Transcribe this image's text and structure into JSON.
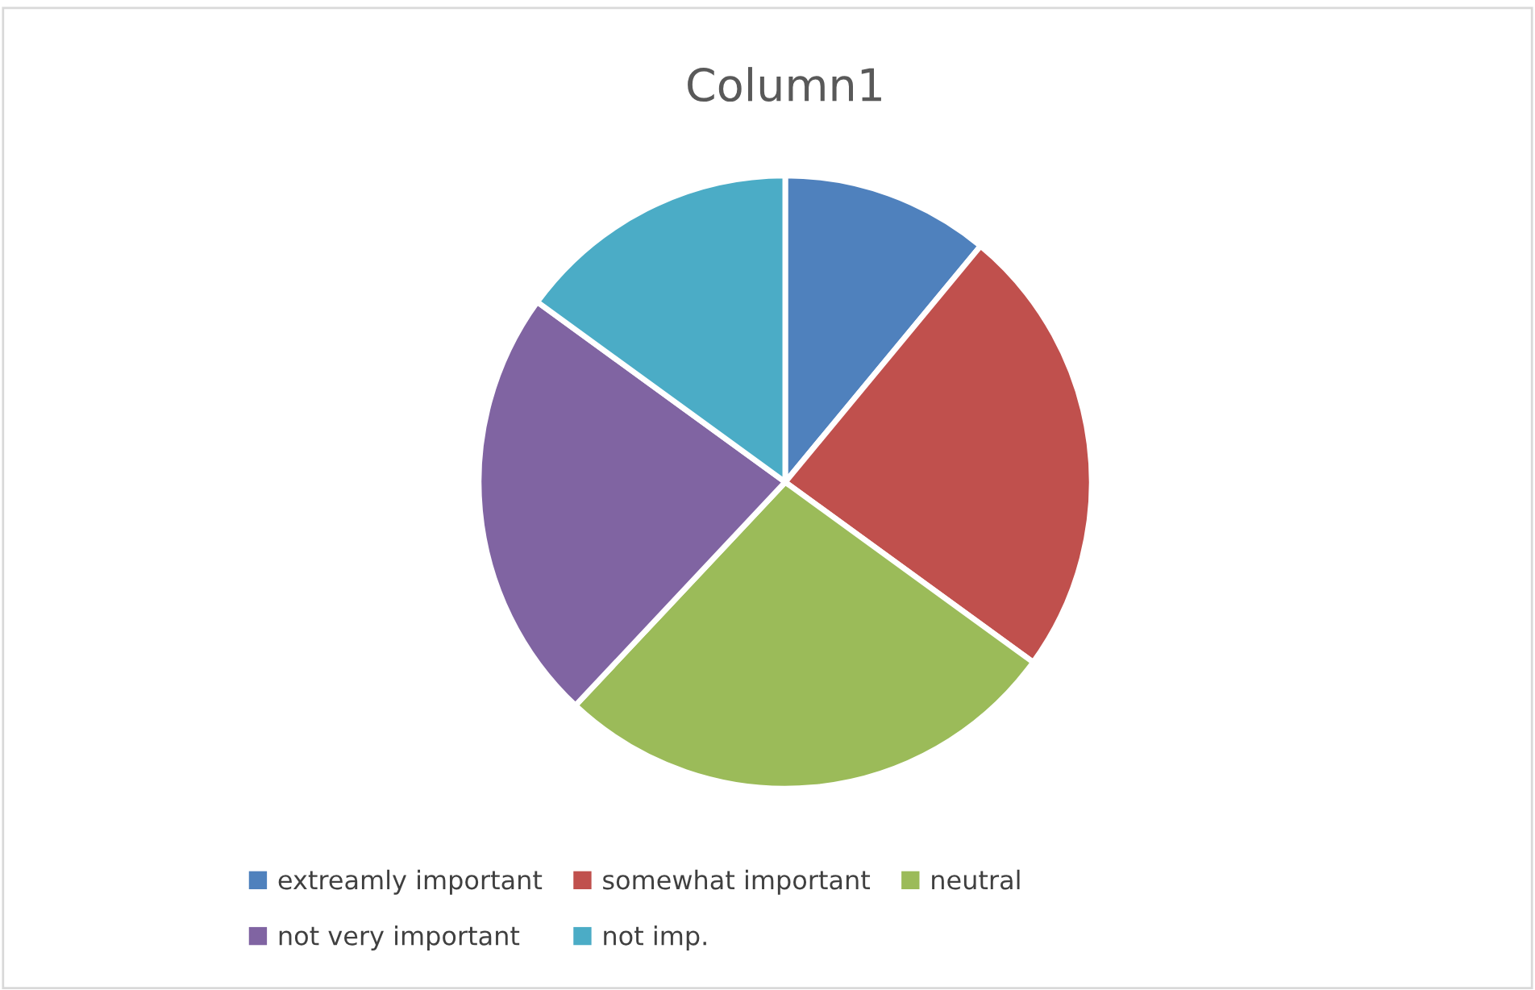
{
  "chart_data": {
    "type": "pie",
    "title": "Column1",
    "categories": [
      "extreamly important",
      "somewhat important",
      "neutral",
      "not very important",
      "not imp."
    ],
    "values": [
      11,
      24,
      27,
      23,
      15
    ],
    "colors": [
      "#4f81bd",
      "#c0504d",
      "#9bbb59",
      "#8064a2",
      "#4bacc6"
    ],
    "legend": "bottom"
  }
}
